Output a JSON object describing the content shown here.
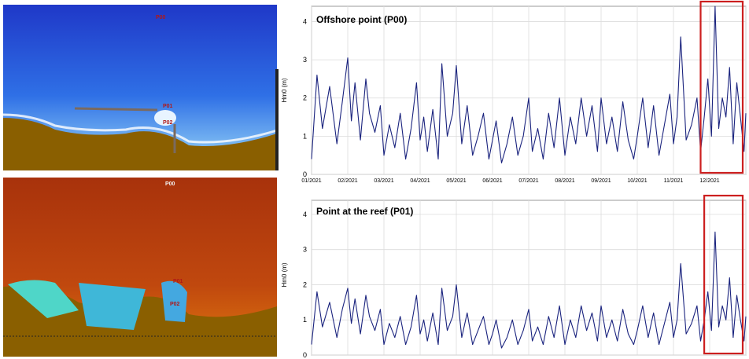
{
  "maps": {
    "top": {
      "labels": [
        "P00",
        "P01",
        "P02"
      ]
    },
    "bottom": {
      "labels": [
        "P00",
        "P01",
        "P02"
      ]
    }
  },
  "chart_data": [
    {
      "type": "line",
      "title": "Offshore point (P00)",
      "xlabel": "",
      "ylabel": "Hm0 (m)",
      "x_ticks": [
        "01/2021",
        "02/2021",
        "03/2021",
        "04/2021",
        "05/2021",
        "06/2021",
        "07/2021",
        "08/2021",
        "09/2021",
        "10/2021",
        "11/2021",
        "12/2021"
      ],
      "ylim": [
        0,
        4.4
      ],
      "y_ticks": [
        0,
        1,
        2,
        3,
        4
      ],
      "grid": true,
      "line_color": "#1a237e",
      "highlight_color": "#cc1f1f",
      "highlight_months": [
        10.75,
        12
      ],
      "series": [
        {
          "x_months": [
            0,
            0.15,
            0.3,
            0.5,
            0.7,
            0.85,
            1.0,
            1.1,
            1.2,
            1.35,
            1.5,
            1.6,
            1.75,
            1.9,
            2.0,
            2.15,
            2.3,
            2.45,
            2.6,
            2.75,
            2.9,
            3.0,
            3.1,
            3.2,
            3.35,
            3.5,
            3.6,
            3.75,
            3.9,
            4.0,
            4.15,
            4.3,
            4.45,
            4.6,
            4.75,
            4.9,
            5.0,
            5.1,
            5.25,
            5.4,
            5.55,
            5.7,
            5.85,
            6.0,
            6.1,
            6.25,
            6.4,
            6.55,
            6.7,
            6.85,
            7.0,
            7.15,
            7.3,
            7.45,
            7.6,
            7.75,
            7.9,
            8.0,
            8.15,
            8.3,
            8.45,
            8.6,
            8.75,
            8.9,
            9.0,
            9.15,
            9.3,
            9.45,
            9.6,
            9.75,
            9.9,
            10.0,
            10.1,
            10.2,
            10.35,
            10.5,
            10.65,
            10.75,
            10.85,
            10.95,
            11.05,
            11.15,
            11.25,
            11.35,
            11.45,
            11.55,
            11.65,
            11.75,
            11.85,
            11.95,
            12.0
          ],
          "y": [
            0.4,
            2.6,
            1.2,
            2.3,
            0.8,
            1.9,
            3.05,
            1.4,
            2.4,
            0.9,
            2.5,
            1.6,
            1.1,
            1.8,
            0.5,
            1.3,
            0.7,
            1.6,
            0.4,
            1.2,
            2.4,
            0.9,
            1.5,
            0.6,
            1.7,
            0.4,
            2.9,
            1.0,
            1.6,
            2.85,
            0.8,
            1.8,
            0.5,
            1.0,
            1.6,
            0.4,
            0.9,
            1.4,
            0.3,
            0.8,
            1.5,
            0.5,
            1.0,
            2.0,
            0.6,
            1.2,
            0.4,
            1.6,
            0.7,
            2.0,
            0.5,
            1.5,
            0.8,
            2.0,
            1.0,
            1.8,
            0.6,
            2.0,
            0.8,
            1.5,
            0.6,
            1.9,
            0.9,
            0.4,
            1.0,
            2.0,
            0.7,
            1.8,
            0.5,
            1.3,
            2.1,
            0.8,
            1.5,
            3.6,
            0.9,
            1.3,
            2.0,
            0.6,
            1.5,
            2.5,
            1.0,
            4.4,
            1.2,
            2.0,
            1.5,
            2.8,
            0.8,
            2.4,
            1.5,
            0.6,
            1.6
          ]
        }
      ]
    },
    {
      "type": "line",
      "title": "Point at the reef (P01)",
      "xlabel": "",
      "ylabel": "Hm0 (m)",
      "x_ticks": [],
      "ylim": [
        0,
        4.4
      ],
      "y_ticks": [
        0,
        1,
        2,
        3,
        4
      ],
      "grid": true,
      "line_color": "#1a237e",
      "highlight_color": "#cc1f1f",
      "highlight_months": [
        10.85,
        12
      ],
      "series": [
        {
          "x_months": [
            0,
            0.15,
            0.3,
            0.5,
            0.7,
            0.85,
            1.0,
            1.1,
            1.2,
            1.35,
            1.5,
            1.6,
            1.75,
            1.9,
            2.0,
            2.15,
            2.3,
            2.45,
            2.6,
            2.75,
            2.9,
            3.0,
            3.1,
            3.2,
            3.35,
            3.5,
            3.6,
            3.75,
            3.9,
            4.0,
            4.15,
            4.3,
            4.45,
            4.6,
            4.75,
            4.9,
            5.0,
            5.1,
            5.25,
            5.4,
            5.55,
            5.7,
            5.85,
            6.0,
            6.1,
            6.25,
            6.4,
            6.55,
            6.7,
            6.85,
            7.0,
            7.15,
            7.3,
            7.45,
            7.6,
            7.75,
            7.9,
            8.0,
            8.15,
            8.3,
            8.45,
            8.6,
            8.75,
            8.9,
            9.0,
            9.15,
            9.3,
            9.45,
            9.6,
            9.75,
            9.9,
            10.0,
            10.1,
            10.2,
            10.35,
            10.5,
            10.65,
            10.75,
            10.85,
            10.95,
            11.05,
            11.15,
            11.25,
            11.35,
            11.45,
            11.55,
            11.65,
            11.75,
            11.85,
            11.95,
            12.0
          ],
          "y": [
            0.3,
            1.8,
            0.8,
            1.5,
            0.5,
            1.3,
            1.9,
            0.9,
            1.6,
            0.6,
            1.7,
            1.1,
            0.7,
            1.3,
            0.3,
            0.9,
            0.5,
            1.1,
            0.3,
            0.8,
            1.7,
            0.6,
            1.0,
            0.4,
            1.2,
            0.3,
            1.9,
            0.7,
            1.1,
            2.0,
            0.5,
            1.2,
            0.3,
            0.7,
            1.1,
            0.3,
            0.6,
            1.0,
            0.2,
            0.5,
            1.0,
            0.3,
            0.7,
            1.3,
            0.4,
            0.8,
            0.3,
            1.1,
            0.5,
            1.4,
            0.3,
            1.0,
            0.5,
            1.4,
            0.7,
            1.2,
            0.4,
            1.4,
            0.5,
            1.0,
            0.4,
            1.3,
            0.6,
            0.3,
            0.7,
            1.4,
            0.5,
            1.2,
            0.3,
            0.9,
            1.5,
            0.5,
            1.0,
            2.6,
            0.6,
            0.9,
            1.4,
            0.4,
            1.0,
            1.8,
            0.7,
            3.5,
            0.8,
            1.4,
            1.0,
            2.2,
            0.5,
            1.7,
            1.0,
            0.4,
            1.1
          ]
        }
      ]
    }
  ]
}
